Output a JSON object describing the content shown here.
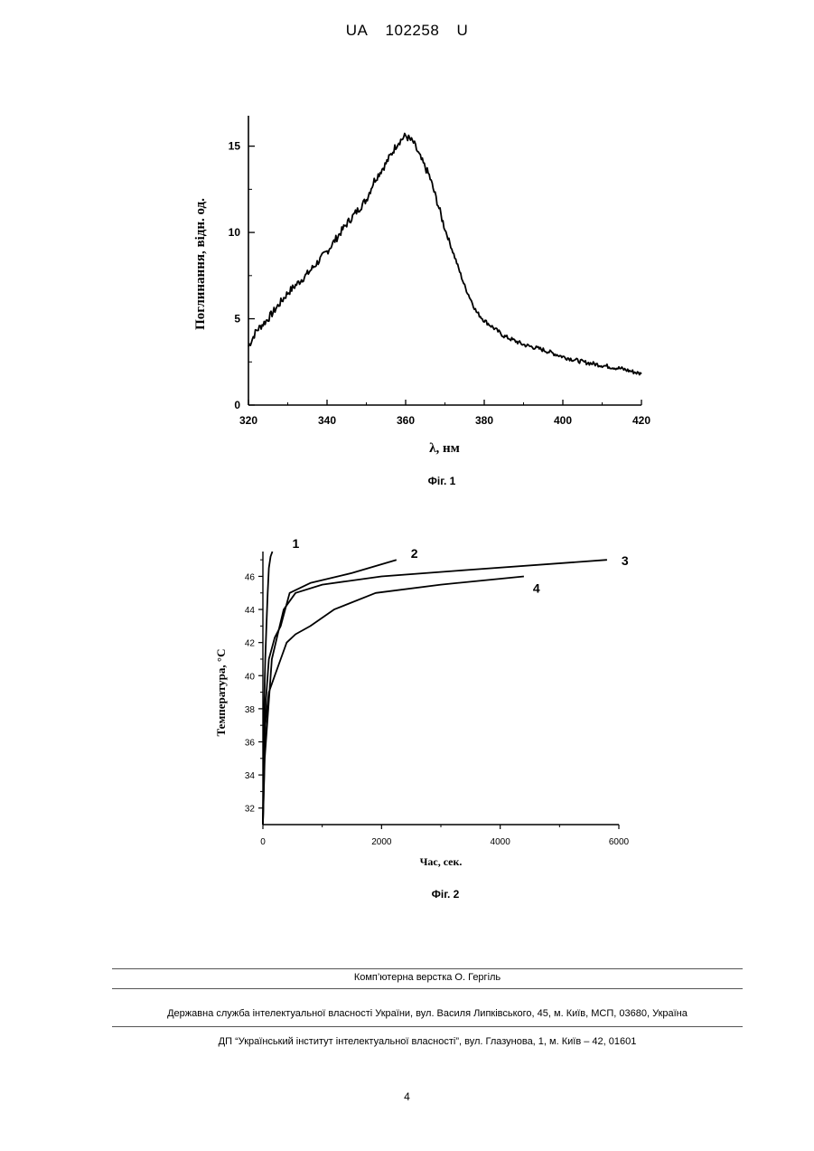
{
  "header": {
    "country": "UA",
    "number": "102258",
    "kind": "U"
  },
  "figure1": {
    "caption": "Фіг. 1",
    "chart_data": {
      "type": "line",
      "xlabel": "λ, нм",
      "ylabel": "Поглинання, відн. од.",
      "xlim": [
        320,
        420
      ],
      "ylim": [
        0,
        16.5
      ],
      "x_ticks": [
        "320",
        "340",
        "360",
        "380",
        "400",
        "420"
      ],
      "y_ticks": [
        "0",
        "5",
        "10",
        "15"
      ],
      "series": [
        {
          "x": [
            320,
            322,
            325,
            328,
            330,
            335,
            340,
            345,
            350,
            352,
            355,
            358,
            360,
            362,
            364,
            366,
            368,
            370,
            372,
            375,
            378,
            380,
            385,
            390,
            395,
            400,
            405,
            410,
            415,
            420
          ],
          "values": [
            3.4,
            4.3,
            5.0,
            5.9,
            6.5,
            7.6,
            8.9,
            10.5,
            11.9,
            13.0,
            14.0,
            15.2,
            15.6,
            15.2,
            14.2,
            13.3,
            11.8,
            10.2,
            8.9,
            6.9,
            5.4,
            4.9,
            4.0,
            3.5,
            3.2,
            2.8,
            2.5,
            2.3,
            2.1,
            1.8
          ]
        }
      ]
    }
  },
  "figure2": {
    "caption": "Фіг. 2",
    "chart_data": {
      "type": "line",
      "xlabel": "Час, сек.",
      "ylabel": "Температура, °C",
      "xlim": [
        0,
        6000
      ],
      "ylim": [
        31,
        47.5
      ],
      "x_ticks": [
        "0",
        "2000",
        "4000",
        "6000"
      ],
      "y_ticks": [
        "32",
        "34",
        "36",
        "38",
        "40",
        "42",
        "44",
        "46"
      ],
      "series": [
        {
          "name": "1",
          "x": [
            0,
            20,
            40,
            60,
            80,
            100,
            130,
            160
          ],
          "values": [
            31,
            38,
            41,
            43,
            45,
            46.5,
            47.2,
            47.5
          ]
        },
        {
          "name": "2",
          "x": [
            0,
            20,
            50,
            100,
            200,
            300,
            450,
            800,
            1500,
            2250
          ],
          "values": [
            31,
            36,
            38.5,
            41,
            42.3,
            43,
            45,
            45.6,
            46.2,
            47
          ]
        },
        {
          "name": "3",
          "x": [
            0,
            30,
            80,
            150,
            250,
            350,
            550,
            1000,
            2000,
            3500,
            5800
          ],
          "values": [
            31,
            35,
            37.5,
            41,
            42.5,
            44,
            45,
            45.5,
            46,
            46.4,
            47
          ]
        },
        {
          "name": "4",
          "x": [
            0,
            40,
            100,
            200,
            300,
            400,
            550,
            800,
            1200,
            1900,
            3000,
            4400
          ],
          "values": [
            31,
            37,
            39,
            40,
            41,
            42,
            42.5,
            43,
            44,
            45,
            45.5,
            46
          ]
        }
      ]
    }
  },
  "footer": {
    "layout": "Комп’ютерна верстка О. Гергіль",
    "service": "Державна служба інтелектуальної власності України, вул. Василя Липківського, 45, м. Київ, МСП, 03680, Україна",
    "institute": "ДП “Український інститут інтелектуальної власності”, вул. Глазунова, 1, м. Київ – 42, 01601"
  },
  "page_number": "4"
}
